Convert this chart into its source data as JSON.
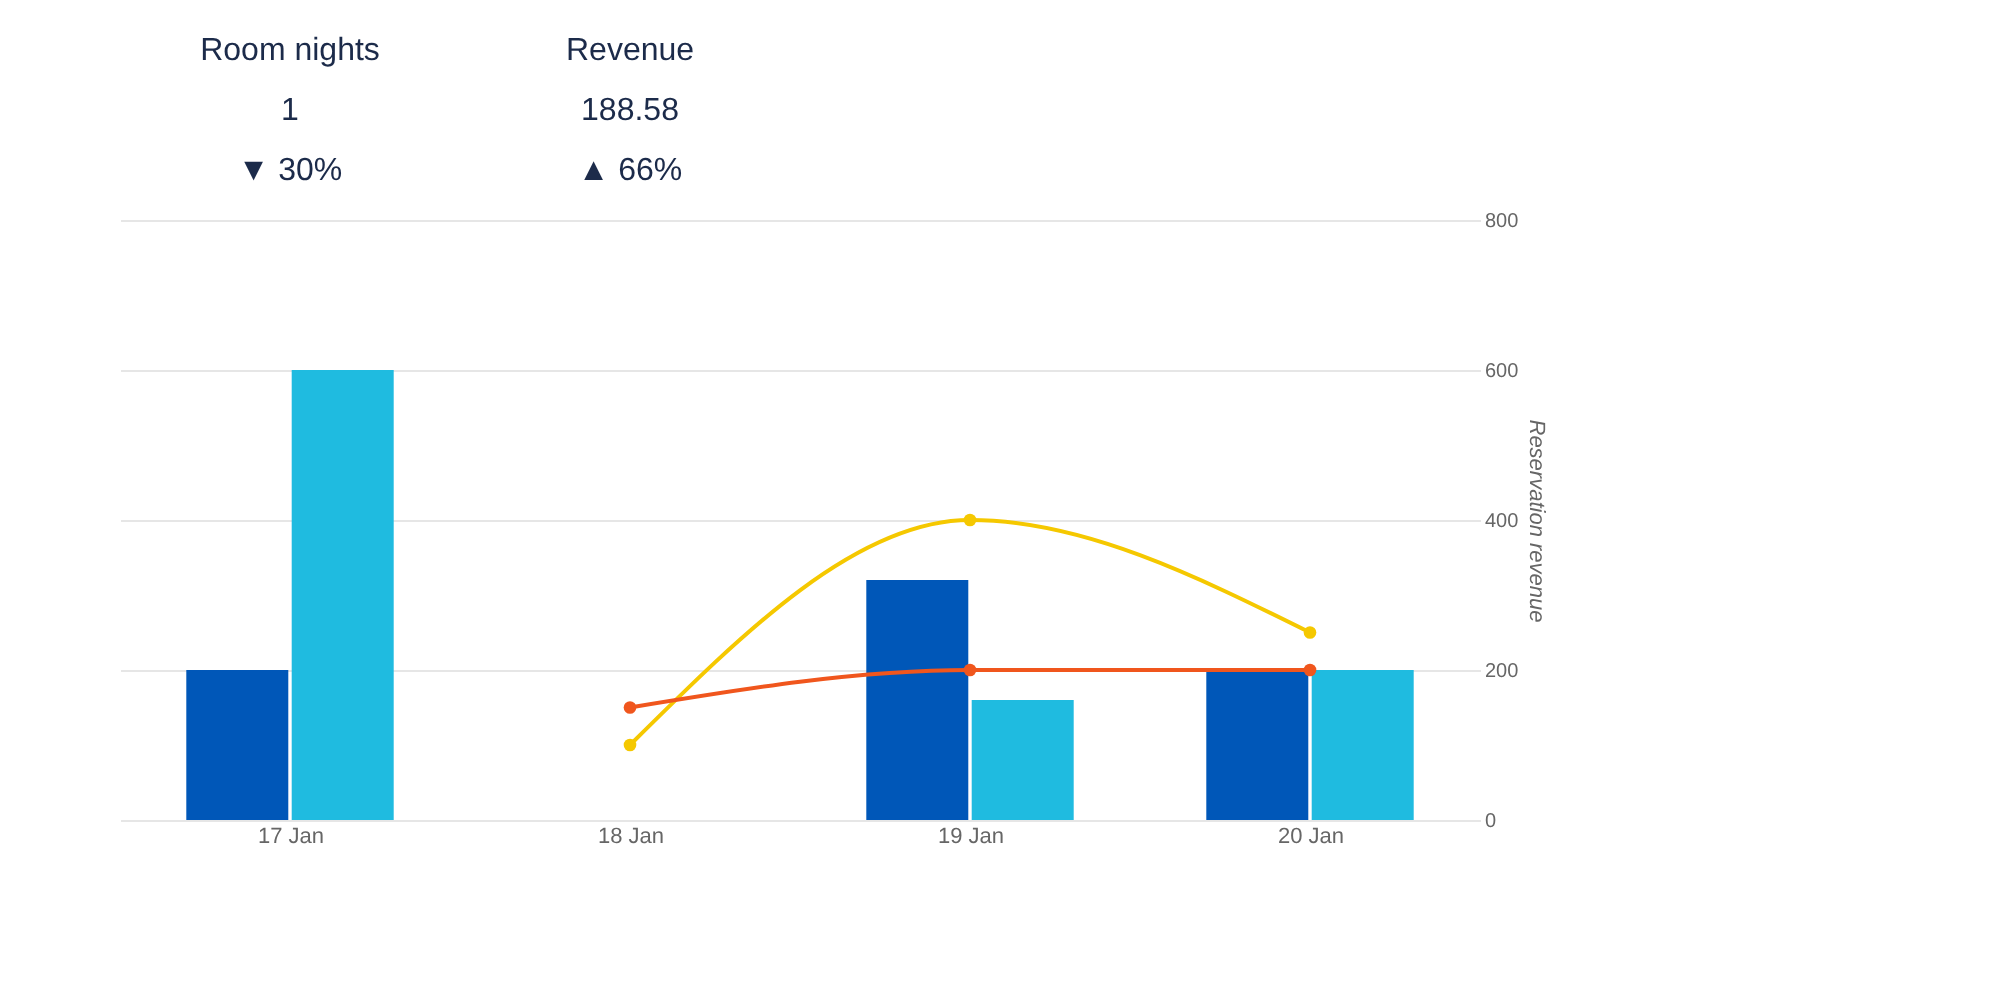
{
  "chart_data": {
    "type": "bar",
    "categories": [
      "17 Jan",
      "18 Jan",
      "19 Jan",
      "20 Jan"
    ],
    "series": [
      {
        "color": "#0057b8",
        "values": [
          200,
          0,
          320,
          200
        ]
      },
      {
        "color": "#1fbbe0",
        "values": [
          600,
          0,
          160,
          200
        ]
      },
      {
        "type": "line",
        "color": "#f5c800",
        "values": [
          null,
          100,
          400,
          250
        ]
      },
      {
        "type": "line",
        "color": "#f0561d",
        "values": [
          null,
          150,
          200,
          200
        ]
      }
    ],
    "y2label": "Reservation revenue",
    "ylim": [
      0,
      800
    ],
    "yticks": [
      0,
      200,
      400,
      600,
      800
    ],
    "grid": "y",
    "marker": "circle",
    "annotations": [
      "Room nights",
      "1",
      "▼ 30%",
      "Revenue",
      "188.58",
      "▲ 66%"
    ]
  }
}
